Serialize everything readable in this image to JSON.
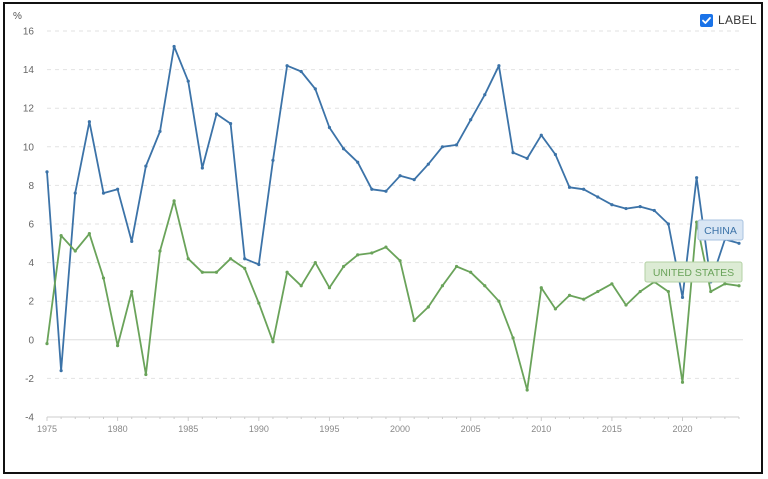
{
  "ui": {
    "label_toggle_text": "LABEL",
    "label_checked": true,
    "check_color": "#1a73e8"
  },
  "chart_data": {
    "type": "line",
    "title": "",
    "xlabel": "",
    "ylabel": "%",
    "x": [
      1975,
      1976,
      1977,
      1978,
      1979,
      1980,
      1981,
      1982,
      1983,
      1984,
      1985,
      1986,
      1987,
      1988,
      1989,
      1990,
      1991,
      1992,
      1993,
      1994,
      1995,
      1996,
      1997,
      1998,
      1999,
      2000,
      2001,
      2002,
      2003,
      2004,
      2005,
      2006,
      2007,
      2008,
      2009,
      2010,
      2011,
      2012,
      2013,
      2014,
      2015,
      2016,
      2017,
      2018,
      2019,
      2020,
      2021,
      2022,
      2023,
      2024
    ],
    "xlim": [
      1975,
      2024
    ],
    "ylim": [
      -4,
      16
    ],
    "yticks": [
      -4,
      -2,
      0,
      2,
      4,
      6,
      8,
      10,
      12,
      14,
      16
    ],
    "xticks": [
      1975,
      1980,
      1985,
      1990,
      1995,
      2000,
      2005,
      2010,
      2015,
      2020
    ],
    "grid": true,
    "series": [
      {
        "name": "CHINA",
        "color": "#3c73a8",
        "label_bg": "#d9e6f4",
        "label_border": "#a9c3e0",
        "values": [
          8.7,
          -1.6,
          7.6,
          11.3,
          7.6,
          7.8,
          5.1,
          9.0,
          10.8,
          15.2,
          13.4,
          8.9,
          11.7,
          11.2,
          4.2,
          3.9,
          9.3,
          14.2,
          13.9,
          13.0,
          11.0,
          9.9,
          9.2,
          7.8,
          7.7,
          8.5,
          8.3,
          9.1,
          10.0,
          10.1,
          11.4,
          12.7,
          14.2,
          9.7,
          9.4,
          10.6,
          9.6,
          7.9,
          7.8,
          7.4,
          7.0,
          6.8,
          6.9,
          6.7,
          6.0,
          2.2,
          8.4,
          3.0,
          5.2,
          5.0
        ]
      },
      {
        "name": "UNITED STATES",
        "color": "#6aa35a",
        "label_bg": "#dcebd4",
        "label_border": "#b3d1a4",
        "values": [
          -0.2,
          5.4,
          4.6,
          5.5,
          3.2,
          -0.3,
          2.5,
          -1.8,
          4.6,
          7.2,
          4.2,
          3.5,
          3.5,
          4.2,
          3.7,
          1.9,
          -0.1,
          3.5,
          2.8,
          4.0,
          2.7,
          3.8,
          4.4,
          4.5,
          4.8,
          4.1,
          1.0,
          1.7,
          2.8,
          3.8,
          3.5,
          2.8,
          2.0,
          0.1,
          -2.6,
          2.7,
          1.6,
          2.3,
          2.1,
          2.5,
          2.9,
          1.8,
          2.5,
          3.0,
          2.5,
          -2.2,
          6.1,
          2.5,
          2.9,
          2.8
        ]
      }
    ]
  }
}
